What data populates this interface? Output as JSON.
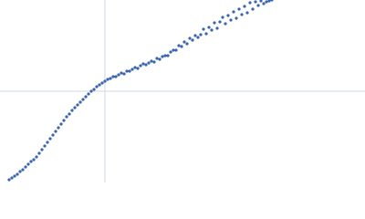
{
  "chart_data": {
    "type": "scatter",
    "color": "#3864b4",
    "xlim": [
      0,
      400
    ],
    "ylim": [
      0,
      200
    ],
    "reference_lines": {
      "x": 115,
      "y": 100,
      "color": "#cdd8e6"
    },
    "x": [
      10,
      13,
      16,
      19,
      22,
      25,
      28,
      31,
      34,
      37,
      40,
      43,
      46,
      49,
      52,
      55,
      58,
      61,
      64,
      67,
      70,
      73,
      76,
      79,
      82,
      85,
      88,
      91,
      94,
      97,
      100,
      103,
      106,
      109,
      112,
      115,
      118,
      121,
      124,
      127,
      130,
      133,
      136,
      139,
      142,
      145,
      148,
      151,
      154,
      157,
      160,
      163,
      166,
      169,
      172,
      175,
      178,
      181,
      184,
      187,
      190,
      193,
      196,
      199,
      202,
      205,
      208,
      211,
      214,
      217,
      220,
      223,
      226,
      229,
      232,
      235,
      238,
      241,
      244,
      247,
      250,
      253,
      256,
      259,
      262,
      265,
      268,
      271,
      274,
      277,
      280,
      283,
      286,
      289,
      292,
      295,
      298
    ],
    "values": [
      3,
      5,
      7,
      9,
      12,
      14,
      17,
      20,
      23,
      25,
      28,
      32,
      36,
      40,
      44,
      48,
      52,
      56,
      60,
      64,
      68,
      72,
      75,
      79,
      82,
      85,
      88,
      91,
      94,
      97,
      100,
      102,
      105,
      107,
      109,
      111,
      113,
      114,
      116,
      116,
      118,
      120,
      119,
      122,
      122,
      124,
      126,
      125,
      128,
      130,
      129,
      131,
      133,
      132,
      136,
      135,
      138,
      139,
      139,
      143,
      145,
      145,
      150,
      149,
      154,
      152,
      158,
      156,
      161,
      159,
      162,
      168,
      163,
      170,
      167,
      175,
      169,
      176,
      181,
      174,
      183,
      178,
      187,
      180,
      190,
      184,
      193,
      186,
      197,
      190,
      198,
      194,
      199,
      196,
      198,
      199,
      200
    ]
  }
}
